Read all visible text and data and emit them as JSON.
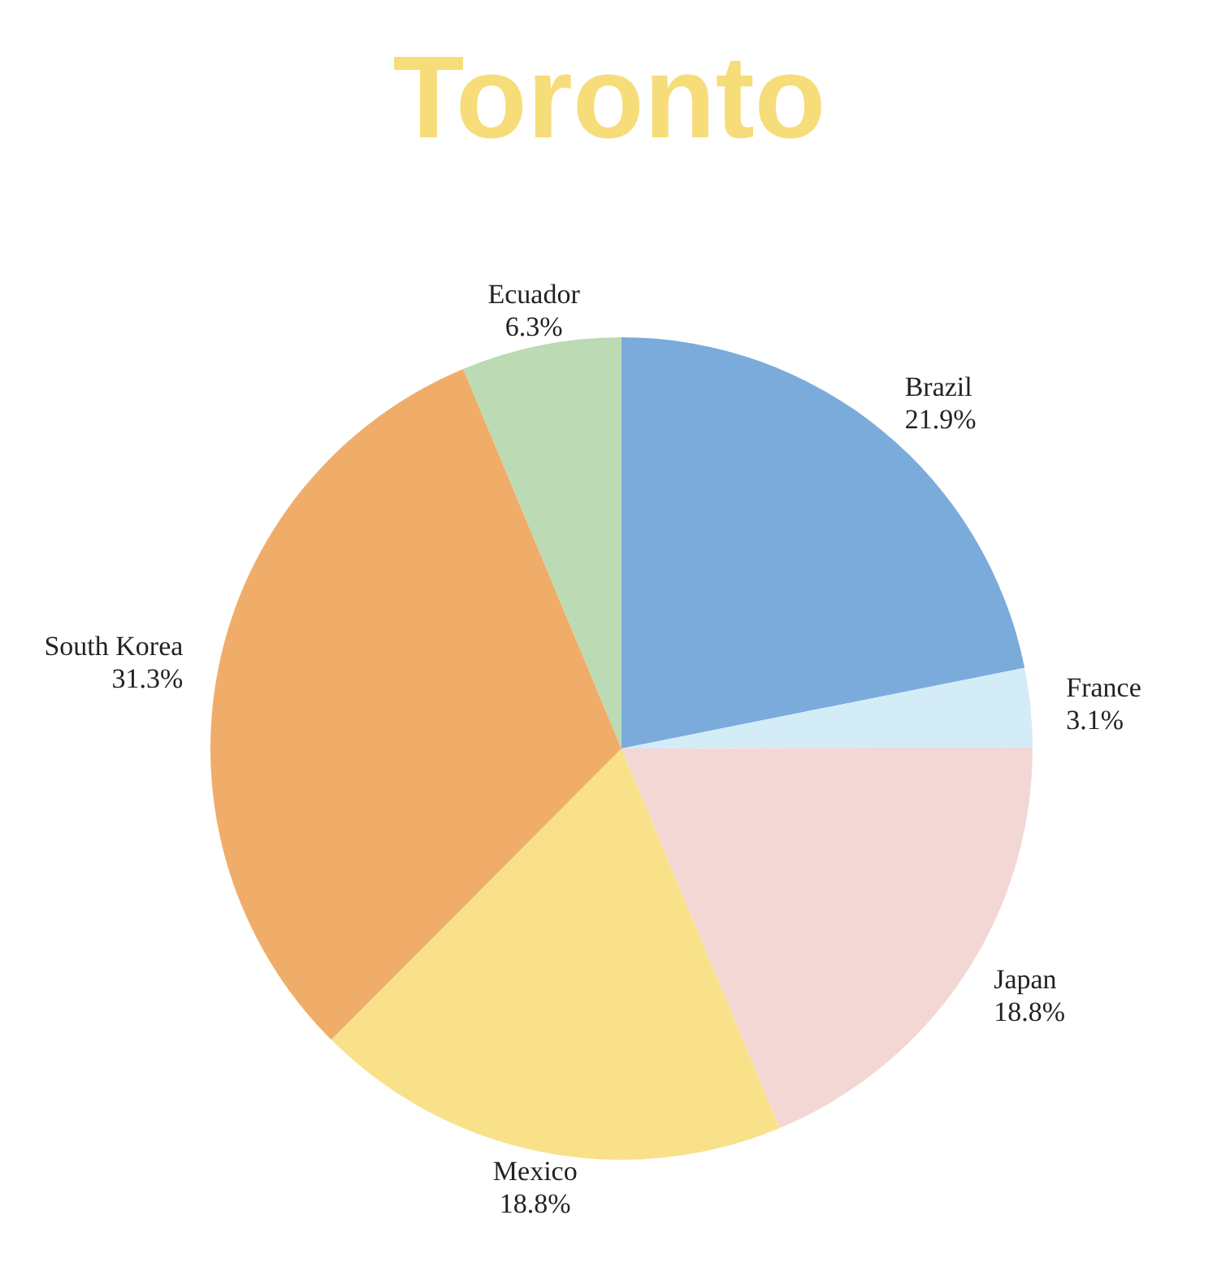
{
  "chart_data": {
    "type": "pie",
    "title": "Toronto",
    "categories": [
      "Brazil",
      "France",
      "Japan",
      "Mexico",
      "South Korea",
      "Ecuador"
    ],
    "values": [
      21.9,
      3.1,
      18.8,
      18.8,
      31.3,
      6.3
    ],
    "value_labels": [
      "21.9%",
      "3.1%",
      "18.8%",
      "18.8%",
      "31.3%",
      "6.3%"
    ],
    "colors": [
      "#7aabdb",
      "#d4ebf8",
      "#f2d7d5",
      "#f9e18a",
      "#f0ad6a",
      "#bcdab3"
    ],
    "legend": false
  }
}
